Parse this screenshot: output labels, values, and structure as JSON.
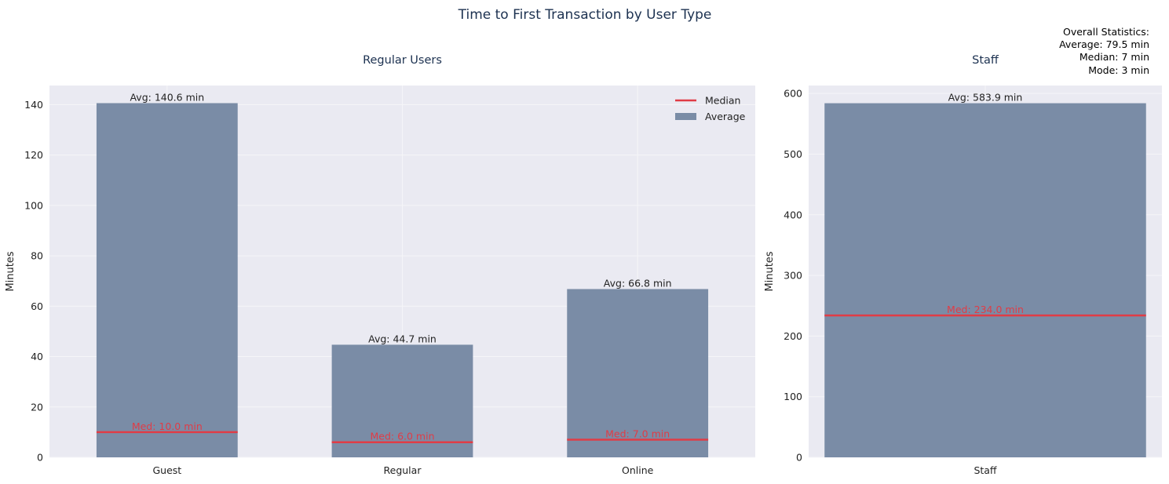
{
  "title": "Time to First Transaction by User Type",
  "stats_box": {
    "lines": [
      "Overall Statistics:",
      "Average: 79.5 min",
      "Median: 7 min",
      "Mode: 3 min"
    ]
  },
  "colors": {
    "bar": "#7a8ca6",
    "median": "#e03c46",
    "plot_bg": "#eaeaf2",
    "grid": "#f5f5f8",
    "title": "#1c3150",
    "text": "#222222"
  },
  "chart_data": [
    {
      "type": "bar",
      "title": "Regular Users",
      "categories": [
        "Guest",
        "Regular",
        "Online"
      ],
      "series": [
        {
          "name": "Average",
          "values": [
            140.6,
            44.7,
            66.8
          ]
        },
        {
          "name": "Median",
          "values": [
            10.0,
            6.0,
            7.0
          ]
        }
      ],
      "bar_labels": [
        "Avg: 140.6 min",
        "Avg: 44.7 min",
        "Avg: 66.8 min"
      ],
      "median_labels": [
        "Med: 10.0 min",
        "Med: 6.0 min",
        "Med: 7.0 min"
      ],
      "ylabel": "Minutes",
      "ylim": [
        0,
        147.6
      ],
      "yticks": [
        0,
        20,
        40,
        60,
        80,
        100,
        120,
        140
      ],
      "legend": {
        "position": "top-right",
        "entries": [
          "Median",
          "Average"
        ]
      },
      "grid": true
    },
    {
      "type": "bar",
      "title": "Staff",
      "categories": [
        "Staff"
      ],
      "series": [
        {
          "name": "Average",
          "values": [
            583.9
          ]
        },
        {
          "name": "Median",
          "values": [
            234.0
          ]
        }
      ],
      "bar_labels": [
        "Avg: 583.9 min"
      ],
      "median_labels": [
        "Med: 234.0 min"
      ],
      "ylabel": "Minutes",
      "ylim": [
        0,
        613.1
      ],
      "yticks": [
        0,
        100,
        200,
        300,
        400,
        500,
        600
      ],
      "grid": true
    }
  ]
}
